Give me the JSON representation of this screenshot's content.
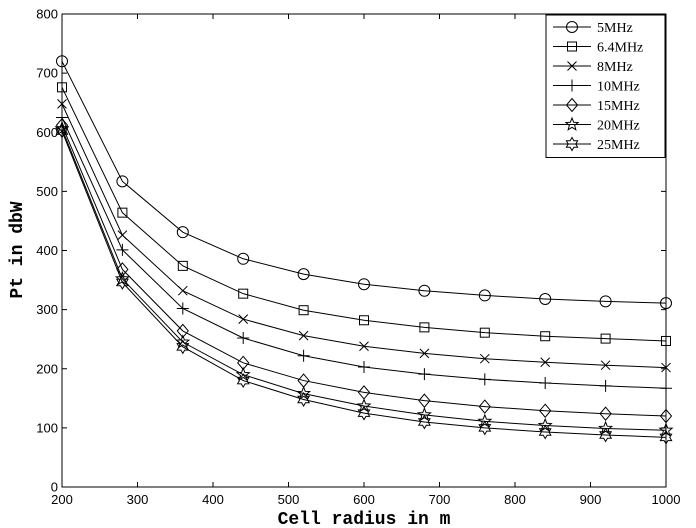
{
  "chart_data": {
    "type": "line",
    "title": "",
    "xlabel": "Cell radius in m",
    "ylabel": "Pt in dbW",
    "xlim": [
      200,
      1000
    ],
    "ylim": [
      0,
      800
    ],
    "xticks": [
      200,
      300,
      400,
      500,
      600,
      700,
      800,
      900,
      1000
    ],
    "yticks": [
      0,
      100,
      200,
      300,
      400,
      500,
      600,
      700,
      800
    ],
    "grid": false,
    "legend_position": "top-right",
    "line_color": "#000000",
    "x": [
      200,
      280,
      360,
      440,
      520,
      600,
      680,
      760,
      840,
      920,
      1000
    ],
    "series": [
      {
        "name": "5MHz",
        "marker": "circle",
        "values": [
          720,
          517,
          431,
          386,
          360,
          343,
          332,
          324,
          318,
          314,
          311
        ]
      },
      {
        "name": "6.4MHz",
        "marker": "square",
        "values": [
          676,
          464,
          374,
          327,
          299,
          282,
          270,
          261,
          255,
          251,
          247
        ]
      },
      {
        "name": "8MHz",
        "marker": "x",
        "values": [
          648,
          426,
          332,
          284,
          256,
          238,
          226,
          217,
          211,
          206,
          202
        ]
      },
      {
        "name": "10MHz",
        "marker": "plus",
        "values": [
          625,
          401,
          302,
          252,
          222,
          203,
          191,
          182,
          176,
          171,
          167
        ]
      },
      {
        "name": "15MHz",
        "marker": "diamond",
        "values": [
          612,
          368,
          264,
          210,
          180,
          160,
          146,
          136,
          129,
          124,
          120
        ]
      },
      {
        "name": "20MHz",
        "marker": "star",
        "values": [
          606,
          352,
          245,
          190,
          158,
          137,
          122,
          111,
          104,
          99,
          96
        ]
      },
      {
        "name": "25MHz",
        "marker": "hexagram",
        "values": [
          602,
          346,
          237,
          180,
          148,
          125,
          110,
          100,
          93,
          88,
          84
        ]
      }
    ]
  }
}
